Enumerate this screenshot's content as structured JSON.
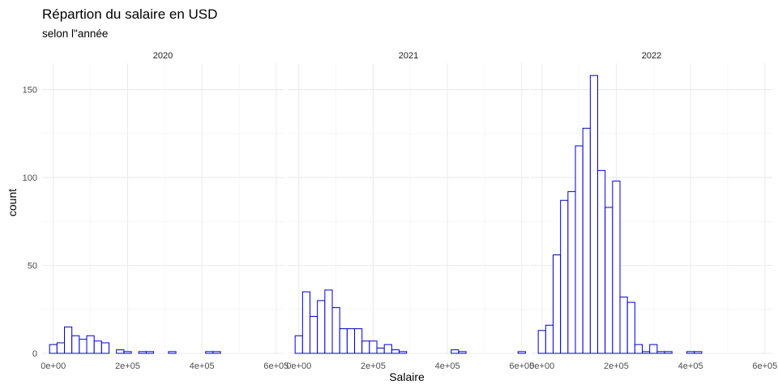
{
  "chart_data": {
    "type": "bar",
    "subtype": "histogram",
    "title": "Répartion du salaire en USD",
    "subtitle": "selon l\"année",
    "xlabel": "Salaire",
    "ylabel": "count",
    "xlim": [
      -30000,
      620000
    ],
    "ylim": [
      0,
      165
    ],
    "x_ticks": [
      0,
      200000,
      400000,
      600000
    ],
    "x_tick_labels": [
      "0e+00",
      "2e+05",
      "4e+05",
      "6e+05"
    ],
    "y_ticks": [
      0,
      50,
      100,
      150
    ],
    "y_tick_labels": [
      "0",
      "50",
      "100",
      "150"
    ],
    "bin_width": 20000,
    "bin_starts": [
      -10000,
      10000,
      30000,
      50000,
      70000,
      90000,
      110000,
      130000,
      150000,
      170000,
      190000,
      210000,
      230000,
      250000,
      270000,
      290000,
      310000,
      330000,
      350000,
      370000,
      390000,
      410000,
      430000,
      450000,
      470000,
      490000,
      510000,
      530000,
      550000,
      570000,
      590000
    ],
    "grid": true,
    "fill": "#ffffff",
    "outline_color": "#0000cd",
    "panels": [
      {
        "label": "2020",
        "counts": [
          5,
          6,
          15,
          10,
          8,
          10,
          7,
          6,
          0,
          2,
          1,
          0,
          1,
          1,
          0,
          0,
          1,
          0,
          0,
          0,
          0,
          1,
          1,
          0,
          0,
          0,
          0,
          0,
          0,
          0,
          0
        ]
      },
      {
        "label": "2021",
        "counts": [
          10,
          35,
          21,
          30,
          36,
          26,
          14,
          14,
          14,
          7,
          7,
          3,
          5,
          2,
          1,
          0,
          0,
          0,
          0,
          0,
          0,
          2,
          1,
          0,
          0,
          0,
          0,
          0,
          0,
          0,
          1
        ]
      },
      {
        "label": "2022",
        "counts": [
          13,
          16,
          56,
          87,
          92,
          118,
          128,
          158,
          104,
          83,
          98,
          32,
          29,
          5,
          1,
          5,
          1,
          1,
          0,
          0,
          1,
          1,
          0,
          0,
          0,
          0,
          0,
          0,
          0,
          0,
          0
        ]
      }
    ]
  }
}
